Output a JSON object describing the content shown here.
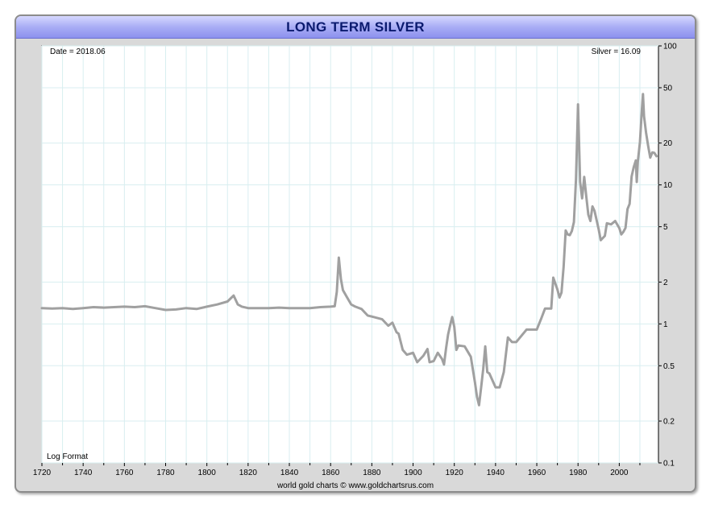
{
  "title": "LONG TERM SILVER",
  "chart_data": {
    "type": "line",
    "title": "LONG TERM SILVER",
    "y_scale": "log",
    "grid": true,
    "xlim": [
      1720,
      2019
    ],
    "ylim": [
      0.1,
      100
    ],
    "x_ticks": [
      "1720",
      "1740",
      "1760",
      "1780",
      "1800",
      "1820",
      "1840",
      "1860",
      "1880",
      "1900",
      "1920",
      "1940",
      "1960",
      "1980",
      "2000"
    ],
    "y_ticks": [
      "100",
      "50",
      "20",
      "10",
      "5",
      "2",
      "1",
      "0.5",
      "0.2",
      "0.1"
    ],
    "top_left_label": "Date = 2018.06",
    "top_right_label": "Silver = 16.09",
    "bottom_left_label": "Log Format",
    "line_color": "#a0a0a0",
    "series": [
      {
        "x": [
          1720,
          1725,
          1730,
          1735,
          1740,
          1745,
          1750,
          1755,
          1760,
          1765,
          1770,
          1775,
          1780,
          1785,
          1790,
          1795,
          1800,
          1805,
          1810,
          1813,
          1815,
          1817,
          1820,
          1825,
          1830,
          1835,
          1840,
          1845,
          1850,
          1855,
          1860,
          1862,
          1863,
          1864,
          1865,
          1866,
          1868,
          1870,
          1872,
          1875,
          1878,
          1880,
          1885,
          1888,
          1890,
          1892,
          1893,
          1895,
          1897,
          1900,
          1902,
          1905,
          1907,
          1908,
          1910,
          1912,
          1914,
          1915,
          1916,
          1917,
          1918,
          1919,
          1920,
          1921,
          1922,
          1925,
          1928,
          1930,
          1931,
          1932,
          1933,
          1934,
          1935,
          1936,
          1937,
          1940,
          1942,
          1944,
          1946,
          1948,
          1950,
          1955,
          1960,
          1962,
          1964,
          1967,
          1968,
          1970,
          1971,
          1972,
          1973,
          1974,
          1975,
          1976,
          1977,
          1978,
          1979,
          1980,
          1980.5,
          1981,
          1982,
          1983,
          1984,
          1985,
          1986,
          1987,
          1988,
          1990,
          1991,
          1993,
          1994,
          1996,
          1998,
          2000,
          2001,
          2002,
          2003,
          2004,
          2005,
          2006,
          2007,
          2008,
          2008.5,
          2009,
          2010,
          2011,
          2011.5,
          2012,
          2013,
          2014,
          2015,
          2016,
          2017,
          2018.06
        ],
        "y": [
          1.3,
          1.29,
          1.3,
          1.28,
          1.3,
          1.32,
          1.31,
          1.32,
          1.33,
          1.32,
          1.34,
          1.3,
          1.26,
          1.27,
          1.3,
          1.28,
          1.33,
          1.38,
          1.45,
          1.6,
          1.38,
          1.33,
          1.3,
          1.3,
          1.3,
          1.31,
          1.3,
          1.3,
          1.3,
          1.32,
          1.33,
          1.34,
          1.7,
          3.0,
          2.1,
          1.75,
          1.55,
          1.38,
          1.33,
          1.28,
          1.15,
          1.13,
          1.08,
          0.97,
          1.02,
          0.87,
          0.85,
          0.65,
          0.6,
          0.62,
          0.53,
          0.59,
          0.66,
          0.53,
          0.54,
          0.62,
          0.56,
          0.51,
          0.67,
          0.84,
          0.98,
          1.12,
          0.95,
          0.65,
          0.7,
          0.69,
          0.58,
          0.38,
          0.3,
          0.26,
          0.35,
          0.47,
          0.69,
          0.45,
          0.44,
          0.35,
          0.35,
          0.45,
          0.8,
          0.74,
          0.74,
          0.91,
          0.91,
          1.08,
          1.29,
          1.29,
          2.15,
          1.77,
          1.55,
          1.68,
          2.56,
          4.7,
          4.4,
          4.35,
          4.65,
          5.4,
          11.0,
          38.0,
          20.0,
          10.5,
          8.0,
          11.4,
          8.2,
          6.1,
          5.5,
          7.0,
          6.5,
          4.8,
          4.0,
          4.3,
          5.3,
          5.2,
          5.5,
          4.9,
          4.4,
          4.6,
          4.9,
          6.7,
          7.3,
          11.5,
          13.4,
          15.0,
          10.5,
          14.7,
          20.2,
          35.1,
          45.0,
          31.2,
          23.8,
          19.1,
          15.7,
          17.1,
          17.0,
          16.09
        ],
        "color": "#a0a0a0"
      }
    ]
  },
  "footer": "world gold charts © www.goldchartsrus.com"
}
